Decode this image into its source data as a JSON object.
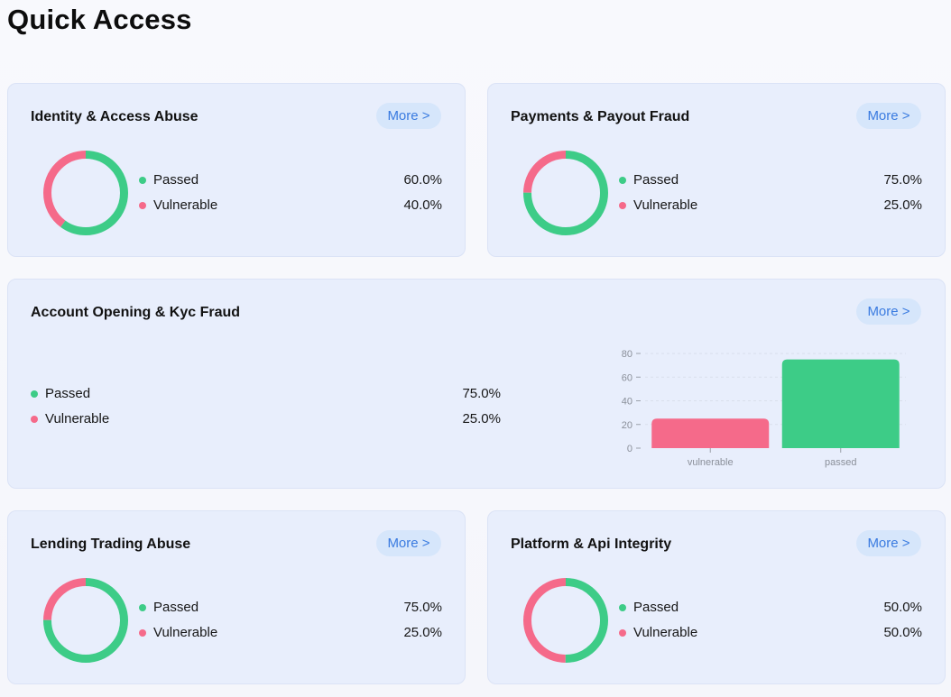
{
  "page": {
    "title": "Quick Access"
  },
  "colors": {
    "passed": "#3dcc87",
    "vulnerable": "#f56a8a",
    "more_text": "#3a7be0"
  },
  "cards": [
    {
      "title": "Identity & Access Abuse",
      "more_label": "More >",
      "passed_label": "Passed",
      "passed_value": "60.0%",
      "passed_pct": 60,
      "vulnerable_label": "Vulnerable",
      "vulnerable_value": "40.0%",
      "vulnerable_pct": 40
    },
    {
      "title": "Payments & Payout Fraud",
      "more_label": "More >",
      "passed_label": "Passed",
      "passed_value": "75.0%",
      "passed_pct": 75,
      "vulnerable_label": "Vulnerable",
      "vulnerable_value": "25.0%",
      "vulnerable_pct": 25
    },
    {
      "title": "Account Opening & Kyc Fraud",
      "more_label": "More >",
      "passed_label": "Passed",
      "passed_value": "75.0%",
      "passed_pct": 75,
      "vulnerable_label": "Vulnerable",
      "vulnerable_value": "25.0%",
      "vulnerable_pct": 25
    },
    {
      "title": "Lending Trading Abuse",
      "more_label": "More >",
      "passed_label": "Passed",
      "passed_value": "75.0%",
      "passed_pct": 75,
      "vulnerable_label": "Vulnerable",
      "vulnerable_value": "25.0%",
      "vulnerable_pct": 25
    },
    {
      "title": "Platform & Api Integrity",
      "more_label": "More >",
      "passed_label": "Passed",
      "passed_value": "50.0%",
      "passed_pct": 50,
      "vulnerable_label": "Vulnerable",
      "vulnerable_value": "50.0%",
      "vulnerable_pct": 50
    }
  ],
  "chart_data": {
    "type": "bar",
    "categories": [
      "vulnerable",
      "passed"
    ],
    "values": [
      25,
      75
    ],
    "yticks": [
      0,
      20,
      40,
      60,
      80
    ],
    "ylim": [
      0,
      80
    ],
    "title": "",
    "xlabel": "",
    "ylabel": ""
  }
}
